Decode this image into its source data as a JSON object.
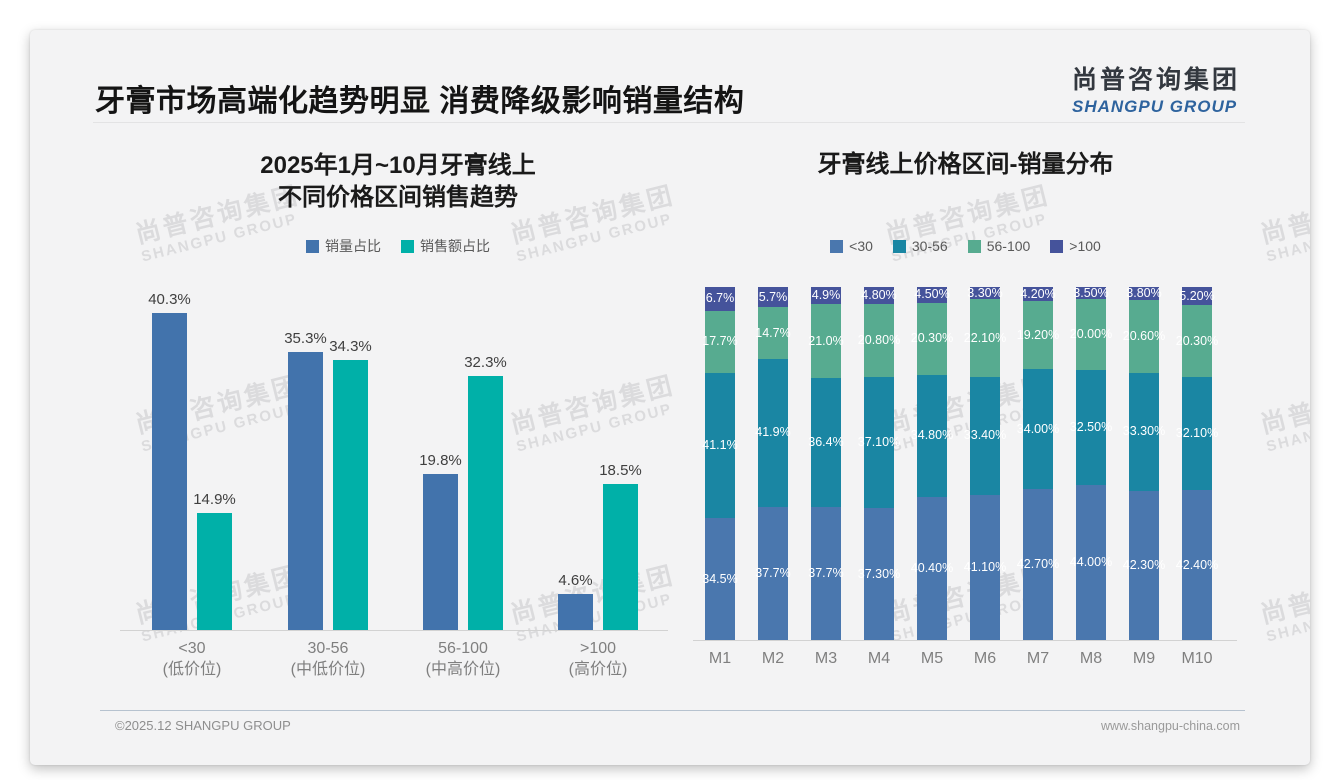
{
  "header": {
    "title": "牙膏市场高端化趋势明显 消费降级影响销量结构"
  },
  "logo": {
    "cn": "尚普咨询集团",
    "en": "SHANGPU GROUP"
  },
  "watermark": {
    "line1": "尚普咨询集团",
    "line2": "SHANGPU GROUP"
  },
  "footer": {
    "left": "©2025.12 SHANGPU GROUP",
    "right": "www.shangpu-china.com"
  },
  "chart_data": [
    {
      "type": "bar",
      "title": "2025年1月~10月牙膏线上 不同价格区间销售趋势",
      "title_lines": [
        "2025年1月~10月牙膏线上",
        "不同价格区间销售趋势"
      ],
      "categories": [
        "<30",
        "30-56",
        "56-100",
        ">100"
      ],
      "category_sublabels": [
        "(低价位)",
        "(中低价位)",
        "(中高价位)",
        "(高价位)"
      ],
      "series": [
        {
          "name": "销量占比",
          "color": "#4273ac",
          "values": [
            40.3,
            35.3,
            19.8,
            4.6
          ],
          "labels": [
            "40.3%",
            "35.3%",
            "19.8%",
            "4.6%"
          ]
        },
        {
          "name": "销售额占比",
          "color": "#00b0a8",
          "values": [
            14.9,
            34.3,
            32.3,
            18.5
          ],
          "labels": [
            "14.9%",
            "34.3%",
            "32.3%",
            "18.5%"
          ]
        }
      ],
      "value_suffix": "%",
      "ylim": [
        0,
        45
      ],
      "grid": false,
      "legend_position": "top"
    },
    {
      "type": "stacked-bar",
      "title": "牙膏线上价格区间-销量分布",
      "categories": [
        "M1",
        "M2",
        "M3",
        "M4",
        "M5",
        "M6",
        "M7",
        "M8",
        "M9",
        "M10"
      ],
      "series": [
        {
          "name": "<30",
          "color": "#4a77ae",
          "values": [
            34.5,
            37.7,
            37.7,
            37.3,
            40.4,
            41.1,
            42.7,
            44.0,
            42.3,
            42.4
          ],
          "labels": [
            "34.5%",
            "37.7%",
            "37.7%",
            "37.30%",
            "40.40%",
            "41.10%",
            "42.70%",
            "44.00%",
            "42.30%",
            "42.40%"
          ]
        },
        {
          "name": "30-56",
          "color": "#1a86a3",
          "values": [
            41.1,
            41.9,
            36.4,
            37.1,
            34.8,
            33.4,
            34.0,
            32.5,
            33.3,
            32.1
          ],
          "labels": [
            "41.1%",
            "41.9%",
            "36.4%",
            "37.10%",
            "34.80%",
            "33.40%",
            "34.00%",
            "32.50%",
            "33.30%",
            "32.10%"
          ]
        },
        {
          "name": "56-100",
          "color": "#57ab90",
          "values": [
            17.7,
            14.7,
            21.0,
            20.8,
            20.3,
            22.1,
            19.2,
            20.0,
            20.6,
            20.3
          ],
          "labels": [
            "17.7%",
            "14.7%",
            "21.0%",
            "20.80%",
            "20.30%",
            "22.10%",
            "19.20%",
            "20.00%",
            "20.60%",
            "20.30%"
          ]
        },
        {
          "name": ">100",
          "color": "#45539b",
          "values": [
            6.7,
            5.7,
            4.9,
            4.8,
            4.5,
            3.3,
            4.2,
            3.5,
            3.8,
            5.2
          ],
          "labels": [
            "6.7%",
            "5.7%",
            "4.9%",
            "4.80%",
            "4.50%",
            "3.30%",
            "4.20%",
            "3.50%",
            "3.80%",
            "5.20%"
          ]
        }
      ],
      "value_suffix": "%",
      "ylim": [
        0,
        100
      ],
      "grid": false,
      "legend_position": "top"
    }
  ]
}
